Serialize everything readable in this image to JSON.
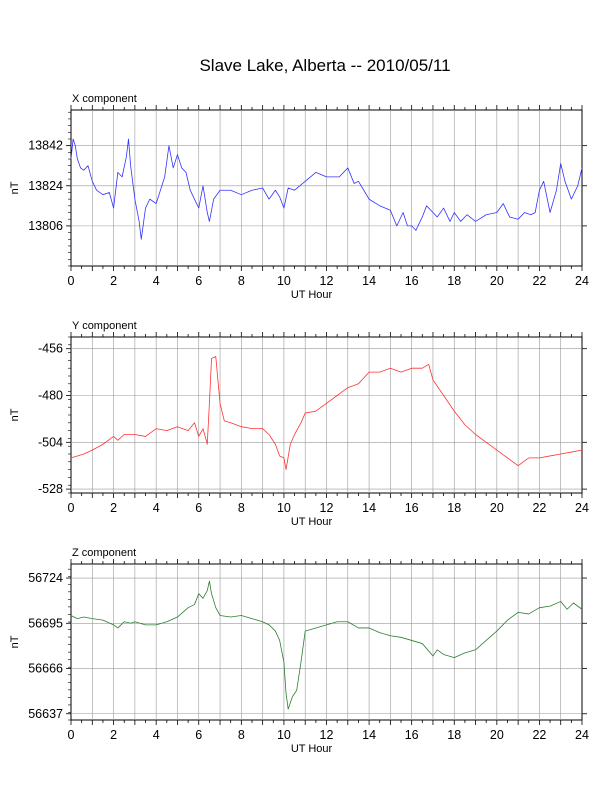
{
  "title": "Slave Lake, Alberta -- 2010/05/11",
  "chart_data": [
    {
      "type": "line",
      "panel_label": "X component",
      "xlabel": "UT Hour",
      "ylabel": "nT",
      "xlim": [
        0,
        24
      ],
      "ylim": [
        13788,
        13858
      ],
      "xticks": [
        0,
        2,
        4,
        6,
        8,
        10,
        12,
        14,
        16,
        18,
        20,
        22,
        24
      ],
      "yticks": [
        13806,
        13824,
        13842
      ],
      "grid": true,
      "color": "#3333ff",
      "series": [
        {
          "x": [
            0.0,
            0.1,
            0.2,
            0.3,
            0.45,
            0.6,
            0.8,
            1.0,
            1.2,
            1.5,
            1.8,
            2.0,
            2.2,
            2.4,
            2.6,
            2.7,
            2.8,
            3.0,
            3.2,
            3.3,
            3.5,
            3.7,
            4.0,
            4.2,
            4.4,
            4.6,
            4.8,
            5.0,
            5.2,
            5.4,
            5.6,
            5.8,
            6.0,
            6.2,
            6.4,
            6.5,
            6.7,
            7.0,
            7.5,
            8.0,
            8.5,
            9.0,
            9.3,
            9.6,
            9.8,
            10.0,
            10.2,
            10.5,
            11.0,
            11.5,
            12.0,
            12.3,
            12.6,
            13.0,
            13.3,
            13.5,
            14.0,
            14.5,
            15.0,
            15.3,
            15.6,
            15.8,
            16.0,
            16.2,
            16.5,
            16.7,
            17.0,
            17.2,
            17.5,
            17.8,
            18.0,
            18.3,
            18.6,
            19.0,
            19.5,
            20.0,
            20.3,
            20.6,
            21.0,
            21.3,
            21.6,
            21.8,
            22.0,
            22.2,
            22.5,
            22.8,
            23.0,
            23.2,
            23.5,
            23.8,
            24.0
          ],
          "y": [
            13836,
            13845,
            13842,
            13836,
            13832,
            13831,
            13833,
            13826,
            13822,
            13820,
            13821,
            13814,
            13830,
            13828,
            13837,
            13845,
            13833,
            13818,
            13808,
            13800,
            13814,
            13818,
            13816,
            13822,
            13828,
            13842,
            13832,
            13838,
            13832,
            13830,
            13822,
            13818,
            13814,
            13824,
            13812,
            13808,
            13818,
            13822,
            13822,
            13820,
            13822,
            13823,
            13818,
            13822,
            13819,
            13814,
            13823,
            13822,
            13826,
            13830,
            13828,
            13828,
            13828,
            13832,
            13825,
            13826,
            13818,
            13815,
            13813,
            13806,
            13812,
            13806,
            13806,
            13804,
            13810,
            13815,
            13812,
            13810,
            13814,
            13808,
            13812,
            13808,
            13811,
            13808,
            13811,
            13812,
            13816,
            13810,
            13809,
            13812,
            13811,
            13812,
            13822,
            13826,
            13812,
            13822,
            13834,
            13826,
            13818,
            13824,
            13832
          ]
        }
      ]
    },
    {
      "type": "line",
      "panel_label": "Y component",
      "xlabel": "UT Hour",
      "ylabel": "nT",
      "xlim": [
        0,
        24
      ],
      "ylim": [
        -530,
        -450
      ],
      "xticks": [
        0,
        2,
        4,
        6,
        8,
        10,
        12,
        14,
        16,
        18,
        20,
        22,
        24
      ],
      "yticks": [
        -456,
        -480,
        -504,
        -528
      ],
      "grid": true,
      "color": "#ff3333",
      "series": [
        {
          "x": [
            0.0,
            0.3,
            0.6,
            1.0,
            1.5,
            2.0,
            2.2,
            2.5,
            3.0,
            3.5,
            4.0,
            4.5,
            5.0,
            5.5,
            5.8,
            6.0,
            6.2,
            6.4,
            6.5,
            6.6,
            6.8,
            7.0,
            7.2,
            7.5,
            8.0,
            8.5,
            9.0,
            9.3,
            9.6,
            9.8,
            10.0,
            10.1,
            10.3,
            10.5,
            10.8,
            11.0,
            11.5,
            12.0,
            12.5,
            13.0,
            13.5,
            14.0,
            14.5,
            15.0,
            15.5,
            16.0,
            16.5,
            16.8,
            17.0,
            17.5,
            18.0,
            18.5,
            19.0,
            19.5,
            20.0,
            20.5,
            21.0,
            21.5,
            22.0,
            22.5,
            23.0,
            23.5,
            24.0
          ],
          "y": [
            -512,
            -511,
            -510,
            -508,
            -505,
            -501,
            -503,
            -500,
            -500,
            -501,
            -497,
            -498,
            -496,
            -498,
            -494,
            -501,
            -497,
            -505,
            -484,
            -461,
            -460,
            -484,
            -493,
            -494,
            -496,
            -497,
            -497,
            -500,
            -505,
            -511,
            -512,
            -518,
            -505,
            -500,
            -494,
            -489,
            -488,
            -484,
            -480,
            -476,
            -474,
            -468,
            -468,
            -466,
            -468,
            -466,
            -466,
            -464,
            -472,
            -480,
            -488,
            -495,
            -500,
            -504,
            -508,
            -512,
            -516,
            -512,
            -512,
            -511,
            -510,
            -509,
            -508
          ]
        }
      ]
    },
    {
      "type": "line",
      "panel_label": "Z component",
      "xlabel": "UT Hour",
      "ylabel": "nT",
      "xlim": [
        0,
        24
      ],
      "ylim": [
        56633,
        56733
      ],
      "xticks": [
        0,
        2,
        4,
        6,
        8,
        10,
        12,
        14,
        16,
        18,
        20,
        22,
        24
      ],
      "yticks": [
        56637,
        56666,
        56695,
        56724
      ],
      "grid": true,
      "color": "#2e7d32",
      "series": [
        {
          "x": [
            0.0,
            0.3,
            0.6,
            1.0,
            1.5,
            2.0,
            2.2,
            2.5,
            2.8,
            3.0,
            3.5,
            4.0,
            4.5,
            5.0,
            5.5,
            5.8,
            6.0,
            6.2,
            6.4,
            6.5,
            6.6,
            6.8,
            7.0,
            7.5,
            8.0,
            8.5,
            9.0,
            9.3,
            9.6,
            9.8,
            10.0,
            10.1,
            10.2,
            10.4,
            10.6,
            10.8,
            11.0,
            11.5,
            12.0,
            12.5,
            13.0,
            13.5,
            14.0,
            14.5,
            15.0,
            15.5,
            16.0,
            16.5,
            17.0,
            17.2,
            17.5,
            18.0,
            18.5,
            19.0,
            19.5,
            20.0,
            20.5,
            21.0,
            21.5,
            22.0,
            22.5,
            23.0,
            23.3,
            23.6,
            24.0
          ],
          "y": [
            56700,
            56698,
            56699,
            56698,
            56697,
            56694,
            56692,
            56696,
            56695,
            56696,
            56694,
            56694,
            56696,
            56699,
            56705,
            56707,
            56714,
            56711,
            56716,
            56722,
            56714,
            56705,
            56700,
            56699,
            56700,
            56698,
            56696,
            56694,
            56690,
            56684,
            56670,
            56650,
            56640,
            56648,
            56652,
            56670,
            56690,
            56692,
            56694,
            56696,
            56696,
            56692,
            56692,
            56689,
            56687,
            56686,
            56684,
            56682,
            56674,
            56678,
            56675,
            56673,
            56676,
            56678,
            56684,
            56690,
            56697,
            56702,
            56701,
            56705,
            56706,
            56709,
            56704,
            56708,
            56704
          ]
        }
      ]
    }
  ]
}
